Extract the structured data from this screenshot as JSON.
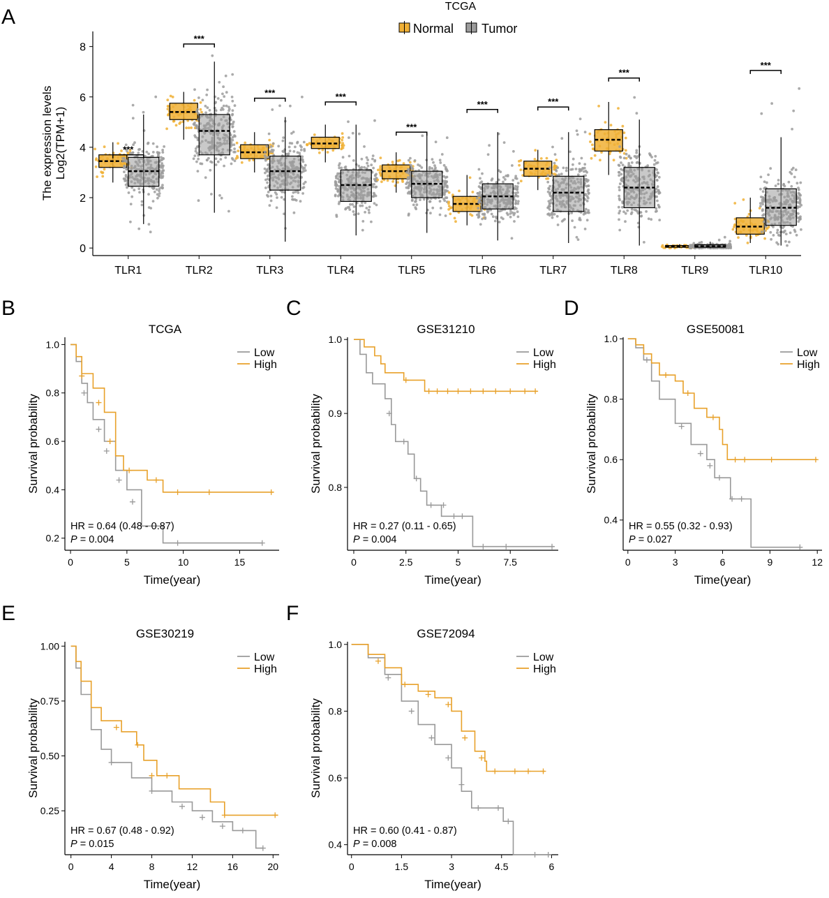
{
  "colors": {
    "normal": "#F0B035",
    "tumor": "#9C9C9C",
    "low": "#999999",
    "high": "#E8A12A",
    "axis": "#000000",
    "box_line": "#000000"
  },
  "panel_letters": [
    "A",
    "B",
    "C",
    "D",
    "E",
    "F"
  ],
  "boxplot": {
    "title": "TCGA",
    "legend": {
      "normal": "Normal",
      "tumor": "Tumor"
    },
    "ylabel_line1": "The expression levels",
    "ylabel_line2": "Log2(TPM+1)",
    "yticks": [
      0,
      2,
      4,
      6,
      8
    ],
    "ylim": [
      -0.3,
      8.6
    ],
    "signif": "***",
    "genes": [
      {
        "name": "TLR1",
        "sig": 3.7,
        "normal": {
          "q1": 3.2,
          "med": 3.45,
          "q3": 3.7,
          "lo": 2.6,
          "hi": 4.2,
          "pmin": 2.6,
          "pmax": 4.3
        },
        "tumor": {
          "q1": 2.45,
          "med": 3.05,
          "q3": 3.6,
          "lo": 0.95,
          "hi": 5.3,
          "pmin": 0.4,
          "pmax": 6.2
        }
      },
      {
        "name": "TLR2",
        "sig": 8.1,
        "normal": {
          "q1": 5.1,
          "med": 5.4,
          "q3": 5.75,
          "lo": 4.3,
          "hi": 6.2,
          "pmin": 4.3,
          "pmax": 6.4
        },
        "tumor": {
          "q1": 3.7,
          "med": 4.65,
          "q3": 5.3,
          "lo": 1.4,
          "hi": 7.4,
          "pmin": 1.1,
          "pmax": 7.9
        }
      },
      {
        "name": "TLR3",
        "sig": 5.95,
        "normal": {
          "q1": 3.55,
          "med": 3.8,
          "q3": 4.1,
          "lo": 3.0,
          "hi": 4.6,
          "pmin": 2.9,
          "pmax": 4.7
        },
        "tumor": {
          "q1": 2.3,
          "med": 3.05,
          "q3": 3.65,
          "lo": 0.25,
          "hi": 5.2,
          "pmin": 0.2,
          "pmax": 6.1
        }
      },
      {
        "name": "TLR4",
        "sig": 5.8,
        "normal": {
          "q1": 3.95,
          "med": 4.15,
          "q3": 4.4,
          "lo": 3.4,
          "hi": 4.9,
          "pmin": 3.3,
          "pmax": 5.0
        },
        "tumor": {
          "q1": 1.85,
          "med": 2.5,
          "q3": 3.1,
          "lo": 0.5,
          "hi": 4.9,
          "pmin": 0.5,
          "pmax": 5.3
        }
      },
      {
        "name": "TLR5",
        "sig": 4.6,
        "normal": {
          "q1": 2.75,
          "med": 3.05,
          "q3": 3.3,
          "lo": 2.2,
          "hi": 3.8,
          "pmin": 2.2,
          "pmax": 3.9
        },
        "tumor": {
          "q1": 2.0,
          "med": 2.55,
          "q3": 3.05,
          "lo": 0.6,
          "hi": 4.5,
          "pmin": 0.6,
          "pmax": 4.8
        }
      },
      {
        "name": "TLR6",
        "sig": 5.5,
        "normal": {
          "q1": 1.45,
          "med": 1.75,
          "q3": 2.05,
          "lo": 0.9,
          "hi": 2.9,
          "pmin": 0.9,
          "pmax": 2.9
        },
        "tumor": {
          "q1": 1.55,
          "med": 2.05,
          "q3": 2.55,
          "lo": 0.3,
          "hi": 4.6,
          "pmin": 0.3,
          "pmax": 5.2
        }
      },
      {
        "name": "TLR7",
        "sig": 5.6,
        "normal": {
          "q1": 2.85,
          "med": 3.15,
          "q3": 3.45,
          "lo": 2.3,
          "hi": 3.9,
          "pmin": 1.9,
          "pmax": 4.0
        },
        "tumor": {
          "q1": 1.45,
          "med": 2.2,
          "q3": 2.85,
          "lo": 0.2,
          "hi": 4.6,
          "pmin": 0.2,
          "pmax": 5.3
        }
      },
      {
        "name": "TLR8",
        "sig": 6.75,
        "normal": {
          "q1": 3.85,
          "med": 4.3,
          "q3": 4.7,
          "lo": 2.9,
          "hi": 5.8,
          "pmin": 2.9,
          "pmax": 6.0
        },
        "tumor": {
          "q1": 1.6,
          "med": 2.4,
          "q3": 3.2,
          "lo": 0.1,
          "hi": 5.1,
          "pmin": 0.1,
          "pmax": 6.4
        }
      },
      {
        "name": "TLR9",
        "sig": null,
        "normal": {
          "q1": 0.03,
          "med": 0.06,
          "q3": 0.1,
          "lo": 0.0,
          "hi": 0.15,
          "pmin": 0.0,
          "pmax": 0.2
        },
        "tumor": {
          "q1": 0.03,
          "med": 0.07,
          "q3": 0.13,
          "lo": 0.0,
          "hi": 0.25,
          "pmin": 0.0,
          "pmax": 0.45
        }
      },
      {
        "name": "TLR10",
        "sig": 7.05,
        "normal": {
          "q1": 0.55,
          "med": 0.85,
          "q3": 1.2,
          "lo": 0.2,
          "hi": 2.0,
          "pmin": 0.2,
          "pmax": 2.0
        },
        "tumor": {
          "q1": 0.9,
          "med": 1.6,
          "q3": 2.35,
          "lo": 0.1,
          "hi": 4.4,
          "pmin": 0.1,
          "pmax": 6.7
        }
      }
    ]
  },
  "km_common": {
    "xlabel": "Time(year)",
    "ylabel": "Survival probability",
    "legend_low": "Low",
    "legend_high": "High",
    "p_label": "P"
  },
  "km_panels": [
    {
      "title": "TCGA",
      "hr_text": "HR = 0.64 (0.48 - 0.87)",
      "p_text": " = 0.004",
      "xlim": [
        -0.5,
        18.5
      ],
      "xticks": [
        0,
        5,
        10,
        15
      ],
      "xtick_labels": [
        "0",
        "5",
        "10",
        "15"
      ],
      "ylim": [
        0.15,
        1.03
      ],
      "yticks": [
        0.2,
        0.4,
        0.6,
        0.8,
        1.0
      ],
      "ytick_labels": [
        "0.2",
        "0.4",
        "0.6",
        "0.8",
        "1.0"
      ],
      "low": [
        [
          0,
          1.0
        ],
        [
          0.5,
          0.93
        ],
        [
          1,
          0.84
        ],
        [
          1.5,
          0.76
        ],
        [
          2,
          0.69
        ],
        [
          3,
          0.6
        ],
        [
          4,
          0.48
        ],
        [
          5,
          0.4
        ],
        [
          6.3,
          0.25
        ],
        [
          8.2,
          0.18
        ],
        [
          17,
          0.18
        ]
      ],
      "high": [
        [
          0,
          1.0
        ],
        [
          0.5,
          0.95
        ],
        [
          1,
          0.88
        ],
        [
          2,
          0.82
        ],
        [
          3,
          0.72
        ],
        [
          4,
          0.54
        ],
        [
          4.7,
          0.48
        ],
        [
          6.8,
          0.44
        ],
        [
          8.2,
          0.39
        ],
        [
          18,
          0.39
        ]
      ],
      "low_censor": [
        [
          1.2,
          0.8
        ],
        [
          2.5,
          0.65
        ],
        [
          3.2,
          0.56
        ],
        [
          4.3,
          0.44
        ],
        [
          5.5,
          0.35
        ],
        [
          9.5,
          0.18
        ],
        [
          17,
          0.18
        ]
      ],
      "high_censor": [
        [
          1.0,
          0.87
        ],
        [
          2.5,
          0.76
        ],
        [
          3.5,
          0.6
        ],
        [
          5.2,
          0.48
        ],
        [
          7.6,
          0.44
        ],
        [
          9.5,
          0.39
        ],
        [
          12.3,
          0.39
        ],
        [
          17.8,
          0.39
        ]
      ]
    },
    {
      "title": "GSE31210",
      "hr_text": "HR = 0.27 (0.11 - 0.65)",
      "p_text": " = 0.004",
      "xlim": [
        -0.3,
        9.8
      ],
      "xticks": [
        0,
        2.5,
        5,
        7.5
      ],
      "xtick_labels": [
        "0",
        "2.5",
        "5",
        "7.5"
      ],
      "ylim": [
        0.715,
        1.003
      ],
      "yticks": [
        0.8,
        0.9,
        1.0
      ],
      "ytick_labels": [
        "0.8",
        "0.9",
        "1.0"
      ],
      "low": [
        [
          0,
          1.0
        ],
        [
          0.3,
          0.98
        ],
        [
          0.6,
          0.955
        ],
        [
          0.9,
          0.94
        ],
        [
          1.5,
          0.92
        ],
        [
          1.8,
          0.885
        ],
        [
          2.0,
          0.862
        ],
        [
          2.6,
          0.845
        ],
        [
          2.9,
          0.812
        ],
        [
          3.2,
          0.795
        ],
        [
          3.5,
          0.776
        ],
        [
          4.2,
          0.761
        ],
        [
          5.5,
          0.761
        ],
        [
          5.7,
          0.72
        ],
        [
          9.6,
          0.72
        ]
      ],
      "high": [
        [
          0,
          1.0
        ],
        [
          0.5,
          0.99
        ],
        [
          1.0,
          0.978
        ],
        [
          1.3,
          0.967
        ],
        [
          1.5,
          0.955
        ],
        [
          2.4,
          0.945
        ],
        [
          3.4,
          0.93
        ],
        [
          8.8,
          0.93
        ]
      ],
      "low_censor": [
        [
          1.7,
          0.9
        ],
        [
          2.4,
          0.862
        ],
        [
          3.0,
          0.812
        ],
        [
          3.7,
          0.776
        ],
        [
          4.3,
          0.776
        ],
        [
          4.8,
          0.761
        ],
        [
          5.2,
          0.761
        ],
        [
          6.2,
          0.72
        ],
        [
          7.3,
          0.72
        ],
        [
          9.5,
          0.72
        ]
      ],
      "high_censor": [
        [
          2.5,
          0.945
        ],
        [
          3.6,
          0.93
        ],
        [
          4.0,
          0.93
        ],
        [
          4.5,
          0.93
        ],
        [
          5.0,
          0.93
        ],
        [
          5.6,
          0.93
        ],
        [
          6.2,
          0.93
        ],
        [
          6.8,
          0.93
        ],
        [
          7.5,
          0.93
        ],
        [
          8.2,
          0.93
        ],
        [
          8.7,
          0.93
        ]
      ]
    },
    {
      "title": "GSE50081",
      "hr_text": "HR = 0.55 (0.32 - 0.93)",
      "p_text": " = 0.027",
      "xlim": [
        -0.3,
        12.3
      ],
      "xticks": [
        0,
        3,
        6,
        9,
        12
      ],
      "xtick_labels": [
        "0",
        "3",
        "6",
        "9",
        "12"
      ],
      "ylim": [
        0.3,
        1.005
      ],
      "yticks": [
        0.4,
        0.6,
        0.8,
        1.0
      ],
      "ytick_labels": [
        "0.4",
        "0.6",
        "0.8",
        "1.0"
      ],
      "low": [
        [
          0,
          1.0
        ],
        [
          0.5,
          0.97
        ],
        [
          1.0,
          0.93
        ],
        [
          1.5,
          0.86
        ],
        [
          2.0,
          0.8
        ],
        [
          3.0,
          0.72
        ],
        [
          4.0,
          0.65
        ],
        [
          5.0,
          0.6
        ],
        [
          5.5,
          0.54
        ],
        [
          6.5,
          0.47
        ],
        [
          7.7,
          0.47
        ],
        [
          7.8,
          0.31
        ],
        [
          10.9,
          0.31
        ]
      ],
      "high": [
        [
          0,
          1.0
        ],
        [
          0.5,
          0.98
        ],
        [
          1.0,
          0.95
        ],
        [
          1.5,
          0.92
        ],
        [
          2.0,
          0.88
        ],
        [
          3.0,
          0.86
        ],
        [
          3.5,
          0.82
        ],
        [
          4.2,
          0.77
        ],
        [
          5.0,
          0.74
        ],
        [
          5.8,
          0.7
        ],
        [
          6.0,
          0.65
        ],
        [
          6.3,
          0.6
        ],
        [
          12.0,
          0.6
        ]
      ],
      "low_censor": [
        [
          1.2,
          0.93
        ],
        [
          3.4,
          0.71
        ],
        [
          4.6,
          0.62
        ],
        [
          5.2,
          0.58
        ],
        [
          5.8,
          0.54
        ],
        [
          6.6,
          0.47
        ],
        [
          7.2,
          0.47
        ],
        [
          10.9,
          0.31
        ]
      ],
      "high_censor": [
        [
          2.4,
          0.88
        ],
        [
          3.8,
          0.82
        ],
        [
          5.4,
          0.74
        ],
        [
          6.8,
          0.6
        ],
        [
          7.4,
          0.6
        ],
        [
          9.1,
          0.6
        ],
        [
          11.9,
          0.6
        ]
      ]
    },
    {
      "title": "GSE30219",
      "hr_text": "HR = 0.67 (0.48 - 0.92)",
      "p_text": " = 0.015",
      "xlim": [
        -0.6,
        20.6
      ],
      "xticks": [
        0,
        4,
        8,
        12,
        16,
        20
      ],
      "xtick_labels": [
        "0",
        "4",
        "8",
        "12",
        "16",
        "20"
      ],
      "ylim": [
        0.05,
        1.02
      ],
      "yticks": [
        0.25,
        0.5,
        0.75,
        1.0
      ],
      "ytick_labels": [
        "0.25",
        "0.50",
        "0.75",
        "1.00"
      ],
      "low": [
        [
          0,
          1.0
        ],
        [
          0.5,
          0.9
        ],
        [
          1.0,
          0.78
        ],
        [
          2.0,
          0.62
        ],
        [
          3.0,
          0.53
        ],
        [
          4.0,
          0.47
        ],
        [
          6.0,
          0.4
        ],
        [
          8.0,
          0.34
        ],
        [
          10.0,
          0.29
        ],
        [
          12.0,
          0.25
        ],
        [
          14.0,
          0.2
        ],
        [
          16.0,
          0.16
        ],
        [
          18.0,
          0.16
        ],
        [
          18.3,
          0.08
        ],
        [
          19.0,
          0.08
        ]
      ],
      "high": [
        [
          0,
          1.0
        ],
        [
          0.5,
          0.93
        ],
        [
          1.0,
          0.84
        ],
        [
          2.0,
          0.72
        ],
        [
          3.0,
          0.66
        ],
        [
          5.0,
          0.61
        ],
        [
          6.5,
          0.55
        ],
        [
          7.2,
          0.48
        ],
        [
          8.5,
          0.41
        ],
        [
          10.7,
          0.35
        ],
        [
          13.8,
          0.29
        ],
        [
          15.2,
          0.23
        ],
        [
          20.5,
          0.23
        ]
      ],
      "low_censor": [
        [
          4.0,
          0.47
        ],
        [
          8.0,
          0.34
        ],
        [
          11.0,
          0.27
        ],
        [
          13.0,
          0.22
        ],
        [
          15.0,
          0.18
        ],
        [
          17.0,
          0.16
        ],
        [
          19.0,
          0.08
        ]
      ],
      "high_censor": [
        [
          4.5,
          0.63
        ],
        [
          6.6,
          0.55
        ],
        [
          8.0,
          0.41
        ],
        [
          9.5,
          0.41
        ],
        [
          15.2,
          0.23
        ],
        [
          20.2,
          0.23
        ]
      ]
    },
    {
      "title": "GSE72094",
      "hr_text": "HR = 0.60 (0.41 - 0.87)",
      "p_text": " = 0.008",
      "xlim": [
        -0.12,
        6.2
      ],
      "xticks": [
        0,
        1.5,
        3,
        4.5,
        6
      ],
      "xtick_labels": [
        "0",
        "1.5",
        "3",
        "4.5",
        "6"
      ],
      "ylim": [
        0.37,
        1.008
      ],
      "yticks": [
        0.4,
        0.6,
        0.8,
        1.0
      ],
      "ytick_labels": [
        "0.4",
        "0.6",
        "0.8",
        "1.0"
      ],
      "low": [
        [
          0,
          1.0
        ],
        [
          0.5,
          0.96
        ],
        [
          1.0,
          0.91
        ],
        [
          1.5,
          0.83
        ],
        [
          2.0,
          0.76
        ],
        [
          2.5,
          0.7
        ],
        [
          3.0,
          0.63
        ],
        [
          3.3,
          0.56
        ],
        [
          3.6,
          0.51
        ],
        [
          4.4,
          0.51
        ],
        [
          4.55,
          0.47
        ],
        [
          4.8,
          0.47
        ],
        [
          4.85,
          0.37
        ],
        [
          6.0,
          0.37
        ]
      ],
      "high": [
        [
          0,
          1.0
        ],
        [
          0.5,
          0.97
        ],
        [
          1.0,
          0.93
        ],
        [
          1.5,
          0.88
        ],
        [
          2.0,
          0.86
        ],
        [
          2.5,
          0.84
        ],
        [
          3.0,
          0.8
        ],
        [
          3.3,
          0.74
        ],
        [
          3.7,
          0.68
        ],
        [
          4.0,
          0.65
        ],
        [
          4.05,
          0.62
        ],
        [
          5.8,
          0.62
        ]
      ],
      "low_censor": [
        [
          1.1,
          0.9
        ],
        [
          1.8,
          0.8
        ],
        [
          2.4,
          0.72
        ],
        [
          2.9,
          0.66
        ],
        [
          3.3,
          0.58
        ],
        [
          3.8,
          0.51
        ],
        [
          4.4,
          0.51
        ],
        [
          4.7,
          0.47
        ],
        [
          5.5,
          0.37
        ],
        [
          5.9,
          0.37
        ]
      ],
      "high_censor": [
        [
          0.8,
          0.95
        ],
        [
          1.6,
          0.88
        ],
        [
          2.3,
          0.85
        ],
        [
          2.9,
          0.82
        ],
        [
          3.4,
          0.72
        ],
        [
          3.9,
          0.66
        ],
        [
          4.3,
          0.62
        ],
        [
          4.9,
          0.62
        ],
        [
          5.3,
          0.62
        ],
        [
          5.75,
          0.62
        ]
      ]
    }
  ]
}
